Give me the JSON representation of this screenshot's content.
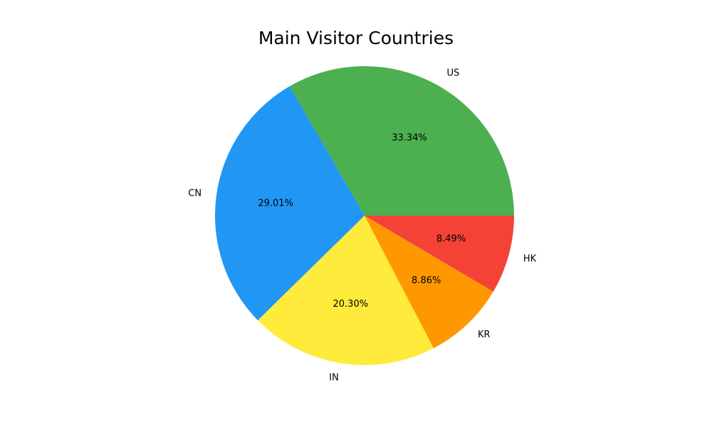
{
  "chart_data": {
    "type": "pie",
    "title": "Main Visitor Countries",
    "autopct_format": "percent_2dp",
    "start_angle_deg": 0,
    "direction": "counterclockwise",
    "legend": "none",
    "slices": [
      {
        "label": "US",
        "value": 33.34,
        "pct_label": "33.34%",
        "color": "#4CAF50"
      },
      {
        "label": "CN",
        "value": 29.01,
        "pct_label": "29.01%",
        "color": "#2196F3"
      },
      {
        "label": "IN",
        "value": 20.3,
        "pct_label": "20.30%",
        "color": "#FFEB3B"
      },
      {
        "label": "KR",
        "value": 8.86,
        "pct_label": "8.86%",
        "color": "#FF9800"
      },
      {
        "label": "HK",
        "value": 8.49,
        "pct_label": "8.49%",
        "color": "#F44336"
      }
    ]
  }
}
